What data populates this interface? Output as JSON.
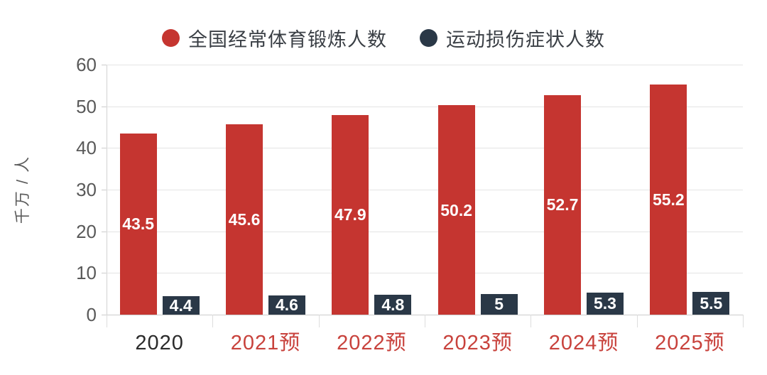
{
  "chart_data": {
    "type": "bar",
    "title": "",
    "categories": [
      "2020",
      "2021预",
      "2022预",
      "2023预",
      "2024预",
      "2025预"
    ],
    "series": [
      {
        "name": "全国经常体育锻炼人数",
        "color": "#c53530",
        "values": [
          43.5,
          45.6,
          47.9,
          50.2,
          52.7,
          55.2
        ],
        "labels": [
          "43.5",
          "45.6",
          "47.9",
          "50.2",
          "52.7",
          "55.2"
        ]
      },
      {
        "name": "运动损伤症状人数",
        "color": "#2a3847",
        "values": [
          4.4,
          4.6,
          4.8,
          5,
          5.3,
          5.5
        ],
        "labels": [
          "4.4",
          "4.6",
          "4.8",
          "5",
          "5.3",
          "5.5"
        ]
      }
    ],
    "xlabel": "",
    "ylabel": "千万 / 人",
    "ylim": [
      0,
      60
    ],
    "ytick_interval": 10,
    "yticks": [
      "0",
      "10",
      "20",
      "30",
      "40",
      "50",
      "60"
    ],
    "grid": true,
    "legend_position": "top",
    "value_label_color": "#ffffff",
    "category_label_colors": [
      "#2b2b2b",
      "#c8423c",
      "#c8423c",
      "#c8423c",
      "#c8423c",
      "#c8423c"
    ]
  },
  "colors": {
    "bar_red": "#c53530",
    "bar_navy": "#2a3847",
    "grid_line": "#e4e4e4",
    "axis_line": "#cccccc",
    "ytick_text": "#595959",
    "xlabel_forecast_red": "#c8423c",
    "xlabel_actual_dark": "#2b2b2b",
    "background": "#ffffff"
  }
}
